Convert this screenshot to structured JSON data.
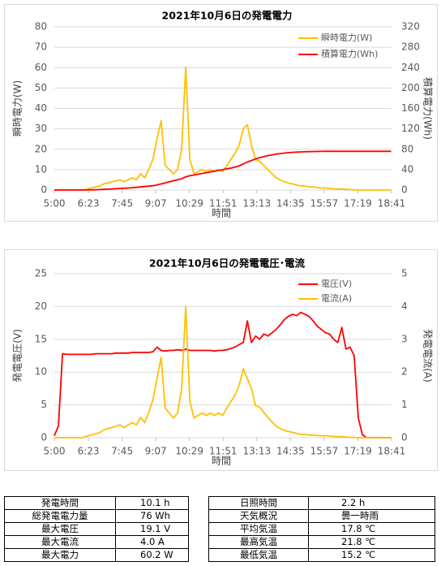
{
  "chart_data": [
    {
      "type": "line",
      "title": "2021年10月6日の発電電力",
      "xlabel": "時間",
      "ylabel": "瞬時電力(W)",
      "y2label": "積算電力(Wh)",
      "x": [
        300,
        310,
        320,
        330,
        340,
        350,
        360,
        370,
        380,
        390,
        400,
        410,
        420,
        430,
        440,
        450,
        460,
        470,
        480,
        490,
        500,
        510,
        520,
        530,
        540,
        550,
        560,
        570,
        580,
        590,
        600,
        610,
        620,
        630,
        640,
        650,
        660,
        670,
        680,
        690,
        700,
        710,
        720,
        730,
        740,
        750,
        760,
        770,
        780,
        790,
        800,
        810,
        820,
        830,
        840,
        850,
        860,
        870,
        880,
        890,
        900,
        910,
        920,
        930,
        940,
        950,
        960,
        970,
        980,
        990,
        1000,
        1010,
        1020,
        1030,
        1040,
        1050,
        1060,
        1070,
        1080,
        1090,
        1100,
        1110,
        1120
      ],
      "xlim": [
        300,
        1121
      ],
      "xticks": [
        {
          "value": 300,
          "label": "5:00"
        },
        {
          "value": 383,
          "label": "6:23"
        },
        {
          "value": 465,
          "label": "7:45"
        },
        {
          "value": 547,
          "label": "9:07"
        },
        {
          "value": 629,
          "label": "10:29"
        },
        {
          "value": 711,
          "label": "11:51"
        },
        {
          "value": 793,
          "label": "13:13"
        },
        {
          "value": 875,
          "label": "14:35"
        },
        {
          "value": 957,
          "label": "15:57"
        },
        {
          "value": 1039,
          "label": "17:19"
        },
        {
          "value": 1121,
          "label": "18:41"
        }
      ],
      "ylim": [
        0,
        80
      ],
      "yticks": [
        0,
        10,
        20,
        30,
        40,
        50,
        60,
        70,
        80
      ],
      "y2lim": [
        0,
        320
      ],
      "y2ticks": [
        0,
        40,
        80,
        120,
        160,
        200,
        240,
        280,
        320
      ],
      "grid": true,
      "legend": "upper right",
      "series": [
        {
          "name": "瞬時電力(W)",
          "color": "#ffc000",
          "values": [
            0,
            0,
            0,
            0,
            0,
            0,
            0,
            0,
            0.5,
            1,
            1.5,
            2,
            3,
            3.5,
            4,
            4.5,
            5,
            4,
            5,
            6,
            5,
            8,
            6,
            10,
            15,
            25,
            34,
            12,
            10,
            8,
            10,
            20,
            60.2,
            15,
            8,
            9,
            10,
            9,
            10,
            9,
            10,
            9,
            12,
            15,
            18,
            22,
            30,
            32,
            22,
            15,
            14,
            12,
            10,
            8,
            6,
            5,
            4,
            3.5,
            3,
            2.5,
            2,
            2,
            1.5,
            1.5,
            1.2,
            1,
            1,
            0.8,
            0.6,
            0.5,
            0.5,
            0.3,
            0.2,
            0.1,
            0,
            0,
            0,
            0,
            0,
            0,
            0,
            0,
            0
          ]
        },
        {
          "name": "積算電力(Wh)",
          "color": "#ff0000",
          "axis": "y2",
          "values": [
            0,
            0,
            0,
            0,
            0,
            0,
            0,
            0,
            0.1,
            0.3,
            0.5,
            0.8,
            1.2,
            1.6,
            2,
            2.5,
            3,
            3.5,
            4,
            4.6,
            5.2,
            6,
            6.8,
            7.6,
            8.5,
            10,
            12,
            14,
            16,
            18,
            20,
            22,
            26,
            28,
            29.5,
            31,
            32.5,
            34,
            35.5,
            37,
            38.5,
            40,
            41.5,
            43,
            45,
            47.5,
            51,
            55,
            58,
            61,
            63.5,
            65.5,
            67.5,
            69,
            70.5,
            71.5,
            72.5,
            73.2,
            73.8,
            74.3,
            74.7,
            75,
            75.3,
            75.5,
            75.7,
            75.8,
            75.9,
            76,
            76,
            76,
            76,
            76,
            76,
            76,
            76,
            76,
            76,
            76,
            76,
            76,
            76,
            76,
            76
          ]
        }
      ]
    },
    {
      "type": "line",
      "title": "2021年10月6日の発電電圧･電流",
      "xlabel": "時間",
      "ylabel": "発電電圧(V)",
      "y2label": "発電電流(A)",
      "x": [
        300,
        310,
        320,
        330,
        340,
        350,
        360,
        370,
        380,
        390,
        400,
        410,
        420,
        430,
        440,
        450,
        460,
        470,
        480,
        490,
        500,
        510,
        520,
        530,
        540,
        550,
        560,
        570,
        580,
        590,
        600,
        610,
        620,
        630,
        640,
        650,
        660,
        670,
        680,
        690,
        700,
        710,
        720,
        730,
        740,
        750,
        760,
        770,
        780,
        790,
        800,
        810,
        820,
        830,
        840,
        850,
        860,
        870,
        880,
        890,
        900,
        910,
        920,
        930,
        940,
        950,
        960,
        970,
        980,
        990,
        1000,
        1010,
        1020,
        1030,
        1040,
        1050,
        1060,
        1070,
        1080,
        1090,
        1100,
        1110,
        1120
      ],
      "xlim": [
        300,
        1121
      ],
      "xticks": [
        {
          "value": 300,
          "label": "5:00"
        },
        {
          "value": 383,
          "label": "6:23"
        },
        {
          "value": 465,
          "label": "7:45"
        },
        {
          "value": 547,
          "label": "9:07"
        },
        {
          "value": 629,
          "label": "10:29"
        },
        {
          "value": 711,
          "label": "11:51"
        },
        {
          "value": 793,
          "label": "13:13"
        },
        {
          "value": 875,
          "label": "14:35"
        },
        {
          "value": 957,
          "label": "15:57"
        },
        {
          "value": 1039,
          "label": "17:19"
        },
        {
          "value": 1121,
          "label": "18:41"
        }
      ],
      "ylim": [
        0,
        25
      ],
      "yticks": [
        0,
        5,
        10,
        15,
        20,
        25
      ],
      "y2lim": [
        0,
        5
      ],
      "y2ticks": [
        0,
        1,
        2,
        3,
        4,
        5
      ],
      "grid": true,
      "legend": "upper right",
      "series": [
        {
          "name": "電圧(V)",
          "color": "#ff0000",
          "values": [
            0.3,
            1.8,
            12.8,
            12.7,
            12.7,
            12.7,
            12.7,
            12.7,
            12.7,
            12.7,
            12.8,
            12.8,
            12.8,
            12.8,
            12.8,
            12.9,
            12.9,
            12.9,
            12.9,
            13,
            13,
            13,
            13,
            13,
            13.1,
            13.8,
            13.3,
            13.2,
            13.3,
            13.3,
            13.4,
            13.3,
            13.5,
            13.3,
            13.3,
            13.3,
            13.3,
            13.3,
            13.3,
            13.2,
            13.3,
            13.3,
            13.4,
            13.6,
            13.8,
            14.2,
            14.5,
            17.8,
            14.5,
            15.5,
            15,
            15.8,
            15.5,
            16,
            16.5,
            17.2,
            18,
            18.5,
            18.8,
            18.6,
            19.1,
            18.8,
            18.5,
            17.8,
            17,
            16.5,
            16,
            15.8,
            15,
            14.5,
            16.8,
            13.5,
            13.8,
            12.5,
            3,
            0.5,
            0,
            0,
            0,
            0,
            0,
            0,
            0
          ]
        },
        {
          "name": "電流(A)",
          "color": "#ffc000",
          "axis": "y2",
          "values": [
            0,
            0,
            0,
            0,
            0,
            0,
            0,
            0,
            0.05,
            0.08,
            0.12,
            0.15,
            0.23,
            0.28,
            0.31,
            0.35,
            0.39,
            0.31,
            0.39,
            0.46,
            0.39,
            0.62,
            0.46,
            0.77,
            1.15,
            1.8,
            2.45,
            0.9,
            0.75,
            0.6,
            0.75,
            1.5,
            4,
            1.1,
            0.6,
            0.68,
            0.75,
            0.68,
            0.75,
            0.68,
            0.75,
            0.68,
            0.9,
            1.1,
            1.3,
            1.6,
            2.1,
            1.8,
            1.5,
            0.97,
            0.93,
            0.77,
            0.62,
            0.48,
            0.35,
            0.28,
            0.22,
            0.19,
            0.16,
            0.13,
            0.1,
            0.1,
            0.08,
            0.08,
            0.07,
            0.06,
            0.06,
            0.05,
            0.04,
            0.03,
            0.03,
            0.02,
            0.01,
            0.01,
            0,
            0,
            0,
            0,
            0,
            0,
            0,
            0,
            0
          ]
        }
      ]
    }
  ],
  "table": {
    "left": [
      [
        "発電時間",
        "10.1 h"
      ],
      [
        "総発電電力量",
        "76 Wh"
      ],
      [
        "最大電圧",
        "19.1 V"
      ],
      [
        "最大電流",
        "4.0 A"
      ],
      [
        "最大電力",
        "60.2 W"
      ]
    ],
    "right": [
      [
        "日照時間",
        "2.2 h"
      ],
      [
        "天気概況",
        "曇一時雨"
      ],
      [
        "平均気温",
        "17.8 ℃"
      ],
      [
        "最高気温",
        "21.8 ℃"
      ],
      [
        "最低気温",
        "15.2 ℃"
      ]
    ]
  }
}
